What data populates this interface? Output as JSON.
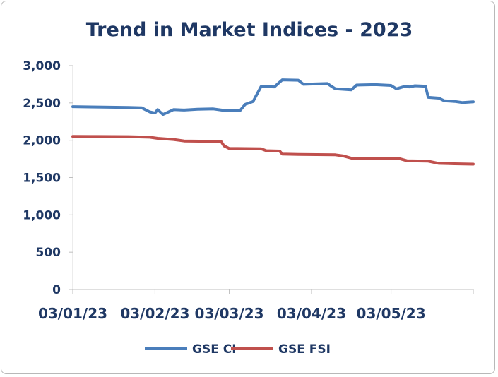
{
  "chart_data": {
    "type": "line",
    "title": "Trend in Market Indices - 2023",
    "xlabel": "",
    "ylabel": "",
    "ylim": [
      0,
      3000
    ],
    "yticks": [
      0,
      500,
      1000,
      1500,
      2000,
      2500,
      3000
    ],
    "ytick_labels": [
      "0",
      "500",
      "1,000",
      "1,500",
      "2,000",
      "2,500",
      "3,000"
    ],
    "xlim": [
      "2023-01-03",
      "2023-06-03"
    ],
    "xticks": [
      "2023-01-03",
      "2023-02-03",
      "2023-03-03",
      "2023-04-03",
      "2023-05-03"
    ],
    "xtick_labels": [
      "03/01/23",
      "03/02/23",
      "03/03/23",
      "03/04/23",
      "03/05/23"
    ],
    "grid": false,
    "legend_position": "bottom",
    "series": [
      {
        "name": "GSE CI",
        "color": "#4a7ebb",
        "points": [
          [
            "2023-01-03",
            2450
          ],
          [
            "2023-01-12",
            2445
          ],
          [
            "2023-01-24",
            2440
          ],
          [
            "2023-01-29",
            2435
          ],
          [
            "2023-02-01",
            2380
          ],
          [
            "2023-02-03",
            2365
          ],
          [
            "2023-02-04",
            2410
          ],
          [
            "2023-02-06",
            2345
          ],
          [
            "2023-02-10",
            2410
          ],
          [
            "2023-02-14",
            2405
          ],
          [
            "2023-02-19",
            2415
          ],
          [
            "2023-02-25",
            2420
          ],
          [
            "2023-03-01",
            2400
          ],
          [
            "2023-03-07",
            2395
          ],
          [
            "2023-03-09",
            2480
          ],
          [
            "2023-03-12",
            2520
          ],
          [
            "2023-03-15",
            2720
          ],
          [
            "2023-03-20",
            2715
          ],
          [
            "2023-03-23",
            2810
          ],
          [
            "2023-03-29",
            2805
          ],
          [
            "2023-03-31",
            2750
          ],
          [
            "2023-04-09",
            2760
          ],
          [
            "2023-04-12",
            2690
          ],
          [
            "2023-04-18",
            2675
          ],
          [
            "2023-04-20",
            2740
          ],
          [
            "2023-04-27",
            2745
          ],
          [
            "2023-05-03",
            2735
          ],
          [
            "2023-05-05",
            2690
          ],
          [
            "2023-05-08",
            2720
          ],
          [
            "2023-05-10",
            2715
          ],
          [
            "2023-05-12",
            2730
          ],
          [
            "2023-05-16",
            2725
          ],
          [
            "2023-05-17",
            2575
          ],
          [
            "2023-05-21",
            2565
          ],
          [
            "2023-05-23",
            2530
          ],
          [
            "2023-05-27",
            2520
          ],
          [
            "2023-05-30",
            2505
          ],
          [
            "2023-06-03",
            2515
          ]
        ]
      },
      {
        "name": "GSE FSI",
        "color": "#c0504d",
        "points": [
          [
            "2023-01-03",
            2052
          ],
          [
            "2023-01-12",
            2050
          ],
          [
            "2023-01-24",
            2048
          ],
          [
            "2023-02-01",
            2040
          ],
          [
            "2023-02-04",
            2025
          ],
          [
            "2023-02-10",
            2010
          ],
          [
            "2023-02-14",
            1990
          ],
          [
            "2023-02-25",
            1985
          ],
          [
            "2023-02-28",
            1980
          ],
          [
            "2023-03-01",
            1925
          ],
          [
            "2023-03-03",
            1890
          ],
          [
            "2023-03-15",
            1885
          ],
          [
            "2023-03-17",
            1860
          ],
          [
            "2023-03-22",
            1855
          ],
          [
            "2023-03-23",
            1815
          ],
          [
            "2023-03-29",
            1810
          ],
          [
            "2023-04-12",
            1805
          ],
          [
            "2023-04-15",
            1790
          ],
          [
            "2023-04-18",
            1760
          ],
          [
            "2023-05-03",
            1760
          ],
          [
            "2023-05-06",
            1755
          ],
          [
            "2023-05-09",
            1725
          ],
          [
            "2023-05-17",
            1720
          ],
          [
            "2023-05-21",
            1690
          ],
          [
            "2023-05-27",
            1685
          ],
          [
            "2023-06-03",
            1680
          ]
        ]
      }
    ]
  }
}
